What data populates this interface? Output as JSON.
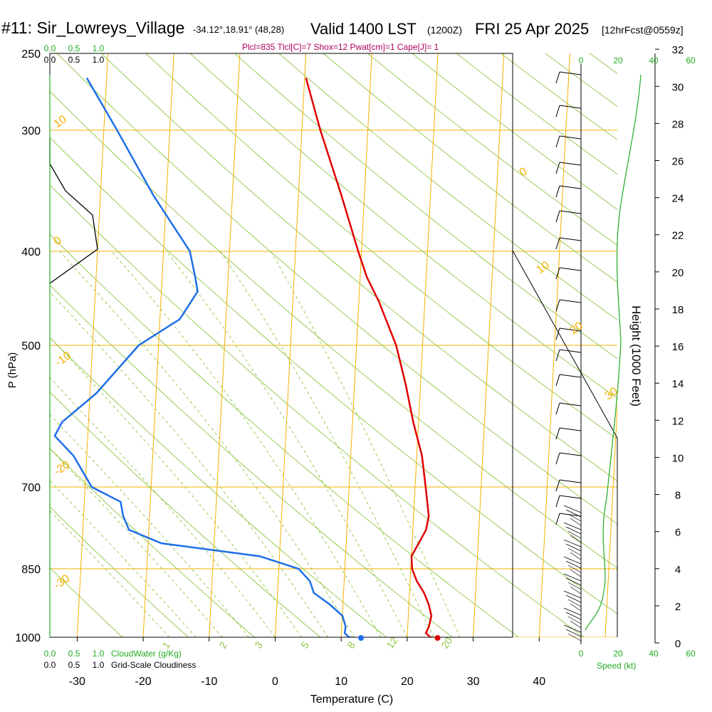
{
  "header": {
    "station": "#11: Sir_Lowreys_Village",
    "coords": "-34.12°,18.91° (48,28)",
    "valid": "Valid 1400 LST",
    "zulu": "(1200Z)",
    "date": "FRI 25 Apr 2025",
    "fcst": "[12hrFcst@0559z]"
  },
  "params_line": "Plcl=835 Tlcl[C]=7 Shox=12 Pwat[cm]=1 Cape[J]= 1",
  "colors": {
    "temp": "#e00000",
    "dew": "#1e6ee8",
    "isotherm": "#f5b000",
    "dryad": "#8cc63f",
    "params": "#b0005a",
    "green": "#22aa22",
    "black": "#000000"
  },
  "chart_data": {
    "type": "skewt",
    "title": "#11: Sir_Lowreys_Village Valid 1400 LST (1200Z) FRI 25 Apr 2025",
    "xlabel": "Temperature (C)",
    "ylabel": "P (hPa)",
    "right_label": "Height (1000 Feet)",
    "xlim": [
      -34,
      36
    ],
    "ylim_hpa": [
      1000,
      250
    ],
    "x_ticks": [
      -30,
      -20,
      -10,
      0,
      10,
      20,
      30,
      40
    ],
    "p_ticks": [
      250,
      300,
      400,
      500,
      700,
      850,
      1000
    ],
    "height_ticks": [
      0,
      2,
      4,
      6,
      8,
      10,
      12,
      14,
      16,
      18,
      20,
      22,
      24,
      26,
      28,
      30,
      32
    ],
    "isotherm_labels": [
      "10",
      "0",
      "-10",
      "-20",
      "-30",
      "0",
      "10",
      "20",
      "30"
    ],
    "mixing_ratio_labels": [
      "1",
      "2",
      "3",
      "5",
      "8",
      "12",
      "20"
    ],
    "temperature": [
      {
        "p": 1003,
        "t": 24.6
      },
      {
        "p": 1000,
        "t": 23.5
      },
      {
        "p": 990,
        "t": 22.8
      },
      {
        "p": 975,
        "t": 23.2
      },
      {
        "p": 950,
        "t": 23.5
      },
      {
        "p": 925,
        "t": 23.0
      },
      {
        "p": 900,
        "t": 22.2
      },
      {
        "p": 875,
        "t": 21.0
      },
      {
        "p": 850,
        "t": 20.2
      },
      {
        "p": 825,
        "t": 20.0
      },
      {
        "p": 800,
        "t": 21.0
      },
      {
        "p": 775,
        "t": 22.0
      },
      {
        "p": 750,
        "t": 22.3
      },
      {
        "p": 700,
        "t": 21.6
      },
      {
        "p": 650,
        "t": 20.8
      },
      {
        "p": 600,
        "t": 19.2
      },
      {
        "p": 550,
        "t": 17.8
      },
      {
        "p": 500,
        "t": 16.0
      },
      {
        "p": 450,
        "t": 13.0
      },
      {
        "p": 425,
        "t": 11.0
      },
      {
        "p": 400,
        "t": 9.5
      },
      {
        "p": 350,
        "t": 6.5
      },
      {
        "p": 300,
        "t": 2.8
      },
      {
        "p": 265,
        "t": 0.2
      }
    ],
    "dewpoint": [
      {
        "p": 1003,
        "t": 13.0
      },
      {
        "p": 1000,
        "t": 11.2
      },
      {
        "p": 990,
        "t": 10.5
      },
      {
        "p": 975,
        "t": 10.6
      },
      {
        "p": 950,
        "t": 10.0
      },
      {
        "p": 925,
        "t": 8.0
      },
      {
        "p": 900,
        "t": 5.5
      },
      {
        "p": 875,
        "t": 4.8
      },
      {
        "p": 850,
        "t": 3.0
      },
      {
        "p": 825,
        "t": -3.0
      },
      {
        "p": 800,
        "t": -18.0
      },
      {
        "p": 775,
        "t": -23.0
      },
      {
        "p": 750,
        "t": -24.0
      },
      {
        "p": 725,
        "t": -24.5
      },
      {
        "p": 700,
        "t": -29.0
      },
      {
        "p": 650,
        "t": -32.0
      },
      {
        "p": 620,
        "t": -35.0
      },
      {
        "p": 600,
        "t": -34.0
      },
      {
        "p": 560,
        "t": -29.0
      },
      {
        "p": 500,
        "t": -23.0
      },
      {
        "p": 470,
        "t": -17.0
      },
      {
        "p": 440,
        "t": -14.5
      },
      {
        "p": 425,
        "t": -15.0
      },
      {
        "p": 400,
        "t": -16.0
      },
      {
        "p": 350,
        "t": -22.0
      },
      {
        "p": 300,
        "t": -28.0
      },
      {
        "p": 265,
        "t": -33.0
      }
    ],
    "surface_temp": 24.6,
    "surface_dew": 13.0,
    "cloud_water_scale": [
      "0.0",
      "0.5",
      "1.0"
    ],
    "cloud_water_label": "CloudWater (g/Kg)",
    "cloudiness_scale": [
      "0.0",
      "0.5",
      "1.0"
    ],
    "cloudiness_label": "Grid-Scale Cloudiness",
    "speed_ticks": [
      "0",
      "20",
      "40",
      "60"
    ],
    "speed_label": "Speed (kt)"
  }
}
